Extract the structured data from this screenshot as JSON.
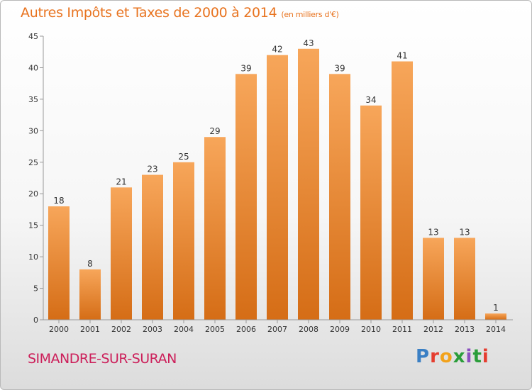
{
  "header": {
    "title": "Autres Impôts et Taxes de 2000 à 2014",
    "subtitle": "(en milliers d'€)"
  },
  "footer": {
    "commune": "SIMANDRE-SUR-SURAN",
    "brand": "Proxiti",
    "brand_colors": [
      "#3a7fc4",
      "#e53d2f",
      "#f2a21b",
      "#2a9d3a",
      "#8a4fbf",
      "#2a9d3a",
      "#e53d2f"
    ]
  },
  "colors": {
    "bar_top": "#f7a65a",
    "bar_bottom": "#d56d16",
    "title": "#e8731f",
    "commune": "#cc1f5a"
  },
  "chart_data": {
    "type": "bar",
    "title": "Autres Impôts et Taxes de 2000 à 2014",
    "subtitle": "(en milliers d'€)",
    "categories": [
      "2000",
      "2001",
      "2002",
      "2003",
      "2004",
      "2005",
      "2006",
      "2007",
      "2008",
      "2009",
      "2010",
      "2011",
      "2012",
      "2013",
      "2014"
    ],
    "values": [
      18,
      8,
      21,
      23,
      25,
      29,
      39,
      42,
      43,
      39,
      34,
      41,
      13,
      13,
      1
    ],
    "xlabel": "",
    "ylabel": "",
    "ylim": [
      0,
      45
    ],
    "yticks": [
      0,
      5,
      10,
      15,
      20,
      25,
      30,
      35,
      40,
      45
    ],
    "grid": false,
    "legend": "none"
  }
}
